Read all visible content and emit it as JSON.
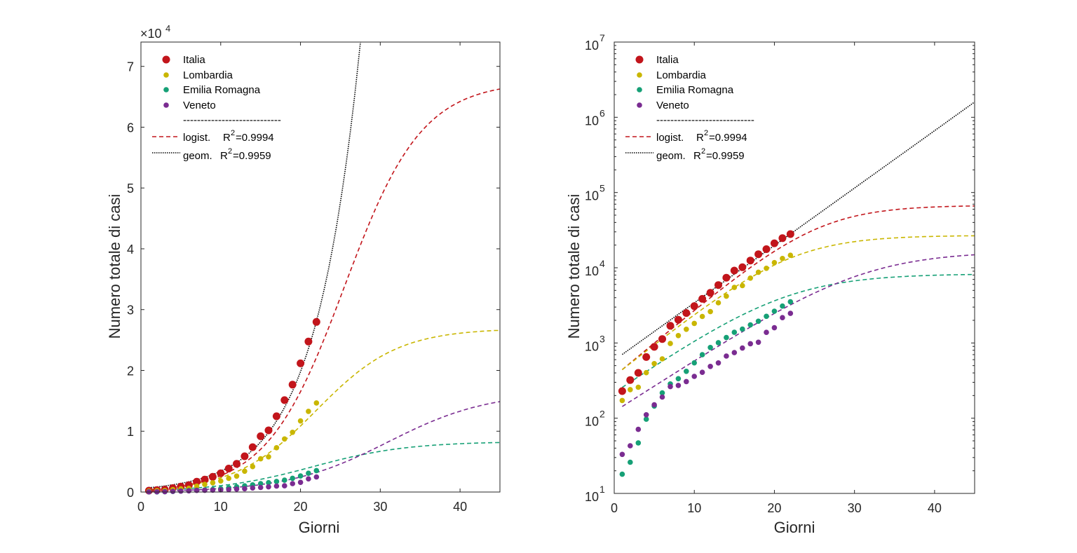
{
  "colors": {
    "italia": "#c2151b",
    "lombardia": "#c9b600",
    "emilia": "#16a076",
    "veneto": "#7a2c91",
    "geom": "#000000",
    "axis": "#262626"
  },
  "legend": {
    "entries": [
      "Italia",
      "Lombardia",
      "Emilia Romagna",
      "Veneto"
    ],
    "separator": "----------------------------",
    "logist_label": "logist.",
    "logist_r2_value": "=0.9994",
    "geom_label": "geom.",
    "geom_r2_value": "=0.9959",
    "r2_letter": "R",
    "r2_sup": "2"
  },
  "chart_data": [
    {
      "type": "scatter",
      "panel": "linear",
      "xlabel": "Giorni",
      "ylabel": "Numero totale di casi",
      "y_exponent_label": "×10",
      "y_exponent_sup": "4",
      "xlim": [
        0,
        45
      ],
      "ylim": [
        0,
        74000
      ],
      "xticks": [
        0,
        10,
        20,
        30,
        40
      ],
      "xtick_labels": [
        "0",
        "10",
        "20",
        "30",
        "40"
      ],
      "yticks": [
        0,
        10000,
        20000,
        30000,
        40000,
        50000,
        60000,
        70000
      ],
      "ytick_labels": [
        "0",
        "1",
        "2",
        "3",
        "4",
        "5",
        "6",
        "7"
      ],
      "y_scale": "linear",
      "legend_position": "top-left",
      "grid": false
    },
    {
      "type": "scatter",
      "panel": "log",
      "xlabel": "Giorni",
      "ylabel": "Numero totale di casi",
      "xlim": [
        0,
        45
      ],
      "ylim": [
        10,
        10000000
      ],
      "xticks": [
        0,
        10,
        20,
        30,
        40
      ],
      "xtick_labels": [
        "0",
        "10",
        "20",
        "30",
        "40"
      ],
      "yticks": [
        10,
        100,
        1000,
        10000,
        100000,
        1000000,
        10000000
      ],
      "ytick_base": "10",
      "ytick_sups": [
        "1",
        "2",
        "3",
        "4",
        "5",
        "6",
        "7"
      ],
      "y_scale": "log",
      "legend_position": "top-left",
      "grid": false
    }
  ],
  "series": [
    {
      "name": "Italia",
      "color_key": "italia",
      "x": [
        1,
        2,
        3,
        4,
        5,
        6,
        7,
        8,
        9,
        10,
        11,
        12,
        13,
        14,
        15,
        16,
        17,
        18,
        19,
        20,
        21,
        22
      ],
      "y": [
        229,
        322,
        400,
        650,
        888,
        1128,
        1694,
        2036,
        2502,
        3089,
        3858,
        4636,
        5883,
        7375,
        9172,
        10149,
        12462,
        15113,
        17660,
        21157,
        24747,
        27980
      ]
    },
    {
      "name": "Lombardia",
      "color_key": "lombardia",
      "x": [
        1,
        2,
        3,
        4,
        5,
        6,
        7,
        8,
        9,
        10,
        11,
        12,
        13,
        14,
        15,
        16,
        17,
        18,
        19,
        20,
        21,
        22
      ],
      "y": [
        172,
        240,
        258,
        403,
        531,
        615,
        984,
        1254,
        1520,
        1820,
        2251,
        2612,
        3420,
        4189,
        5469,
        5791,
        7280,
        8725,
        9820,
        11685,
        13272,
        14649
      ]
    },
    {
      "name": "Emilia Romagna",
      "color_key": "emilia",
      "x": [
        1,
        2,
        3,
        4,
        5,
        6,
        7,
        8,
        9,
        10,
        11,
        12,
        13,
        14,
        15,
        16,
        17,
        18,
        19,
        20,
        21,
        22
      ],
      "y": [
        18,
        26,
        47,
        97,
        145,
        217,
        285,
        335,
        420,
        544,
        698,
        870,
        1010,
        1180,
        1386,
        1530,
        1739,
        1947,
        2263,
        2644,
        3093,
        3522
      ]
    },
    {
      "name": "Veneto",
      "color_key": "veneto",
      "x": [
        1,
        2,
        3,
        4,
        5,
        6,
        7,
        8,
        9,
        10,
        11,
        12,
        13,
        14,
        15,
        16,
        17,
        18,
        19,
        20,
        21,
        22
      ],
      "y": [
        33,
        43,
        71,
        111,
        151,
        191,
        263,
        273,
        307,
        360,
        407,
        488,
        543,
        670,
        744,
        856,
        977,
        1023,
        1384,
        1595,
        2172,
        2473
      ]
    }
  ],
  "fits": {
    "logistic": [
      {
        "color_key": "italia",
        "K": 67500,
        "r": 0.205,
        "x0": 25.5
      },
      {
        "color_key": "lombardia",
        "K": 26900,
        "r": 0.195,
        "x0": 22.0
      },
      {
        "color_key": "emilia",
        "K": 8300,
        "r": 0.168,
        "x0": 21.5
      },
      {
        "color_key": "veneto",
        "K": 16500,
        "r": 0.158,
        "x0": 31.0
      }
    ],
    "geometric": {
      "color_key": "geom",
      "a": 590,
      "b": 1.192
    }
  }
}
